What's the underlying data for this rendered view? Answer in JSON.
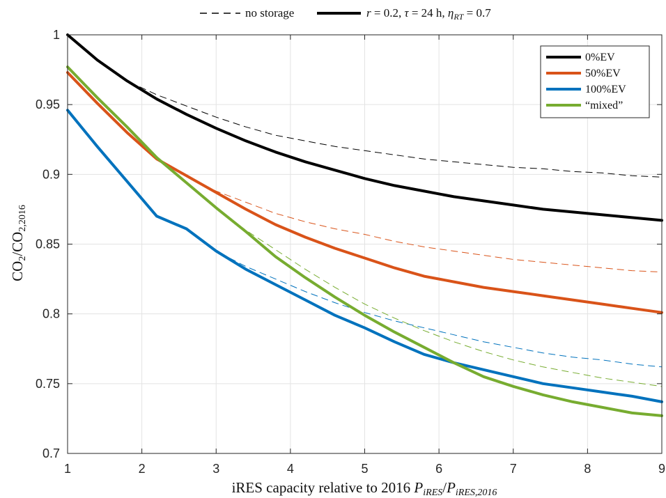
{
  "chart_data": {
    "type": "line",
    "top_legend": {
      "dashed_label": "no storage",
      "solid_r": "r",
      "solid_r_value": " = 0.2, ",
      "solid_tau": "τ",
      "solid_tau_value": " = 24 h, ",
      "solid_eta": "η",
      "solid_eta_sub": "RT",
      "solid_eta_value": " = 0.7"
    },
    "xlabel": {
      "text": "iRES capacity relative to 2016 ",
      "p1": "P",
      "p1_sub": "iRES",
      "slash": "/",
      "p2": "P",
      "p2_sub": "iRES,2016"
    },
    "ylabel": {
      "co2a": "CO",
      "co2a_sub": "2",
      "slash": "/",
      "co2b": "CO",
      "co2b_sub": "2,2016"
    },
    "xlim": [
      1,
      9
    ],
    "ylim": [
      0.7,
      1.0
    ],
    "x_ticks": [
      1,
      2,
      3,
      4,
      5,
      6,
      7,
      8,
      9
    ],
    "x_tick_labels": [
      "1",
      "2",
      "3",
      "4",
      "5",
      "6",
      "7",
      "8",
      "9"
    ],
    "y_ticks": [
      0.7,
      0.75,
      0.8,
      0.85,
      0.9,
      0.95,
      1.0
    ],
    "y_tick_labels": [
      "0.7",
      "0.75",
      "0.8",
      "0.85",
      "0.9",
      "0.95",
      "1"
    ],
    "grid": true,
    "legend_position": "top-right",
    "series": [
      {
        "name": "0%EV",
        "color": "#000000",
        "x": [
          1,
          1.4,
          1.8,
          2.2,
          2.6,
          3,
          3.4,
          3.8,
          4.2,
          4.6,
          5,
          5.4,
          5.8,
          6.2,
          6.6,
          7,
          7.4,
          7.8,
          8.2,
          8.6,
          9
        ],
        "storage": [
          1.0,
          0.982,
          0.967,
          0.954,
          0.943,
          0.933,
          0.924,
          0.916,
          0.909,
          0.903,
          0.897,
          0.892,
          0.888,
          0.884,
          0.881,
          0.878,
          0.875,
          0.873,
          0.871,
          0.869,
          0.867
        ],
        "no_storage": [
          1.0,
          0.982,
          0.967,
          0.957,
          0.949,
          0.941,
          0.934,
          0.928,
          0.924,
          0.92,
          0.917,
          0.914,
          0.911,
          0.909,
          0.907,
          0.905,
          0.904,
          0.902,
          0.901,
          0.899,
          0.898
        ]
      },
      {
        "name": "50%EV",
        "color": "#D95319",
        "x": [
          1,
          1.4,
          1.8,
          2.2,
          2.6,
          3,
          3.4,
          3.8,
          4.2,
          4.6,
          5,
          5.4,
          5.8,
          6.2,
          6.6,
          7,
          7.4,
          7.8,
          8.2,
          8.6,
          9
        ],
        "storage": [
          0.973,
          0.951,
          0.93,
          0.911,
          0.899,
          0.887,
          0.875,
          0.864,
          0.855,
          0.847,
          0.84,
          0.833,
          0.827,
          0.823,
          0.819,
          0.816,
          0.813,
          0.81,
          0.807,
          0.804,
          0.801
        ],
        "no_storage": [
          0.973,
          0.951,
          0.93,
          0.911,
          0.899,
          0.888,
          0.88,
          0.872,
          0.866,
          0.861,
          0.857,
          0.852,
          0.848,
          0.845,
          0.842,
          0.839,
          0.837,
          0.835,
          0.833,
          0.831,
          0.83
        ]
      },
      {
        "name": "100%EV",
        "color": "#0072BD",
        "x": [
          1,
          1.4,
          1.8,
          2.2,
          2.6,
          3,
          3.4,
          3.8,
          4.2,
          4.6,
          5,
          5.4,
          5.8,
          6.2,
          6.6,
          7,
          7.4,
          7.8,
          8.2,
          8.6,
          9
        ],
        "storage": [
          0.946,
          0.92,
          0.895,
          0.87,
          0.861,
          0.845,
          0.832,
          0.821,
          0.81,
          0.799,
          0.79,
          0.78,
          0.771,
          0.765,
          0.76,
          0.755,
          0.75,
          0.747,
          0.744,
          0.741,
          0.737
        ],
        "no_storage": [
          0.946,
          0.92,
          0.895,
          0.87,
          0.861,
          0.845,
          0.834,
          0.825,
          0.816,
          0.808,
          0.801,
          0.795,
          0.79,
          0.785,
          0.78,
          0.776,
          0.772,
          0.769,
          0.767,
          0.764,
          0.762
        ]
      },
      {
        "name": "“mixed”",
        "color": "#77AC30",
        "x": [
          1,
          1.4,
          1.8,
          2.2,
          2.6,
          3,
          3.4,
          3.8,
          4.2,
          4.6,
          5,
          5.4,
          5.8,
          6.2,
          6.6,
          7,
          7.4,
          7.8,
          8.2,
          8.6,
          9
        ],
        "storage": [
          0.977,
          0.955,
          0.934,
          0.912,
          0.894,
          0.876,
          0.859,
          0.841,
          0.826,
          0.812,
          0.799,
          0.787,
          0.776,
          0.765,
          0.755,
          0.748,
          0.742,
          0.737,
          0.733,
          0.729,
          0.727
        ],
        "no_storage": [
          0.977,
          0.955,
          0.934,
          0.912,
          0.894,
          0.876,
          0.86,
          0.846,
          0.832,
          0.819,
          0.807,
          0.797,
          0.788,
          0.78,
          0.773,
          0.767,
          0.762,
          0.758,
          0.754,
          0.751,
          0.748
        ]
      }
    ]
  }
}
